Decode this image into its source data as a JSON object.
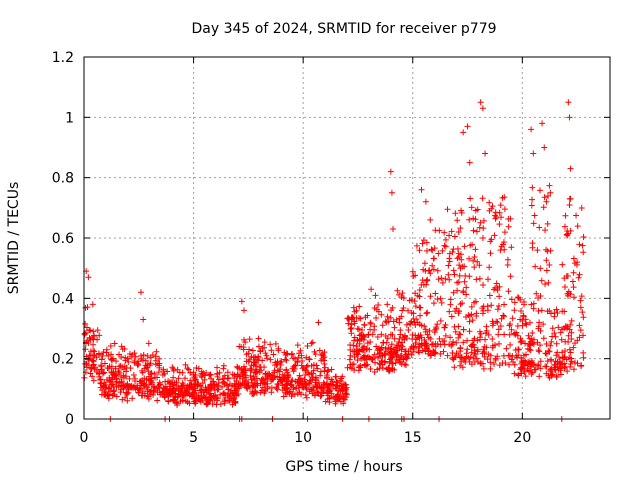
{
  "chart_data": {
    "type": "scatter",
    "title": "Day 345 of 2024, SRMTID for receiver p779",
    "xlabel": "GPS time / hours",
    "ylabel": "SRMTID / TECUs",
    "xlim": [
      0,
      24
    ],
    "ylim": [
      0,
      1.2
    ],
    "x_ticks": [
      0,
      5,
      10,
      15,
      20
    ],
    "x_tick_labels": [
      "0",
      "5",
      "10",
      "15",
      "20"
    ],
    "y_ticks": [
      0,
      0.2,
      0.4,
      0.6,
      0.8,
      1.0,
      1.2
    ],
    "y_tick_labels": [
      "0",
      "0.2",
      "0.4",
      "0.6",
      "0.8",
      "1",
      "1.2"
    ],
    "grid": true,
    "marker": "+",
    "color": "#ff0000",
    "profile": [
      {
        "start": 0.0,
        "end": 0.3,
        "base": 0.22,
        "spread": 0.12
      },
      {
        "start": 0.3,
        "end": 0.7,
        "base": 0.2,
        "spread": 0.1
      },
      {
        "start": 0.7,
        "end": 3.5,
        "base": 0.13,
        "spread": 0.09
      },
      {
        "start": 3.5,
        "end": 7.0,
        "base": 0.1,
        "spread": 0.06
      },
      {
        "start": 7.0,
        "end": 9.0,
        "base": 0.15,
        "spread": 0.09
      },
      {
        "start": 9.0,
        "end": 11.0,
        "base": 0.14,
        "spread": 0.09
      },
      {
        "start": 11.0,
        "end": 12.0,
        "base": 0.1,
        "spread": 0.05
      },
      {
        "start": 12.0,
        "end": 14.2,
        "base": 0.24,
        "spread": 0.12
      },
      {
        "start": 14.2,
        "end": 15.0,
        "base": 0.28,
        "spread": 0.16
      },
      {
        "start": 15.0,
        "end": 16.5,
        "base": 0.35,
        "spread": 0.25
      },
      {
        "start": 16.5,
        "end": 19.5,
        "base": 0.36,
        "spread": 0.34
      },
      {
        "start": 19.5,
        "end": 20.4,
        "base": 0.24,
        "spread": 0.16
      },
      {
        "start": 20.4,
        "end": 21.3,
        "base": 0.35,
        "spread": 0.38
      },
      {
        "start": 21.3,
        "end": 21.8,
        "base": 0.22,
        "spread": 0.14
      },
      {
        "start": 21.8,
        "end": 22.8,
        "base": 0.35,
        "spread": 0.35
      }
    ],
    "spikes": [
      {
        "x": 0.1,
        "y": 0.49
      },
      {
        "x": 0.2,
        "y": 0.47
      },
      {
        "x": 0.4,
        "y": 0.38
      },
      {
        "x": 2.6,
        "y": 0.42
      },
      {
        "x": 2.7,
        "y": 0.33
      },
      {
        "x": 7.2,
        "y": 0.39
      },
      {
        "x": 7.3,
        "y": 0.36
      },
      {
        "x": 10.7,
        "y": 0.32
      },
      {
        "x": 13.1,
        "y": 0.43
      },
      {
        "x": 13.3,
        "y": 0.41
      },
      {
        "x": 14.0,
        "y": 0.82
      },
      {
        "x": 14.05,
        "y": 0.75
      },
      {
        "x": 14.1,
        "y": 0.63
      },
      {
        "x": 15.4,
        "y": 0.76
      },
      {
        "x": 15.6,
        "y": 0.72
      },
      {
        "x": 15.8,
        "y": 0.66
      },
      {
        "x": 17.3,
        "y": 0.95
      },
      {
        "x": 17.5,
        "y": 0.97
      },
      {
        "x": 17.6,
        "y": 0.85
      },
      {
        "x": 18.1,
        "y": 1.05
      },
      {
        "x": 18.2,
        "y": 1.03
      },
      {
        "x": 18.3,
        "y": 0.88
      },
      {
        "x": 18.5,
        "y": 0.69
      },
      {
        "x": 19.0,
        "y": 0.56
      },
      {
        "x": 20.4,
        "y": 0.96
      },
      {
        "x": 20.5,
        "y": 0.88
      },
      {
        "x": 20.9,
        "y": 0.98
      },
      {
        "x": 21.0,
        "y": 0.9
      },
      {
        "x": 21.1,
        "y": 0.72
      },
      {
        "x": 22.1,
        "y": 1.05
      },
      {
        "x": 22.15,
        "y": 1.0
      },
      {
        "x": 22.2,
        "y": 0.83
      },
      {
        "x": 22.5,
        "y": 0.52
      }
    ],
    "zero_points": [
      1.2,
      3.7,
      3.9,
      7.1,
      7.2,
      8.6,
      10.2,
      11.8,
      13.0,
      14.5,
      14.6,
      16.2,
      21.8
    ]
  }
}
